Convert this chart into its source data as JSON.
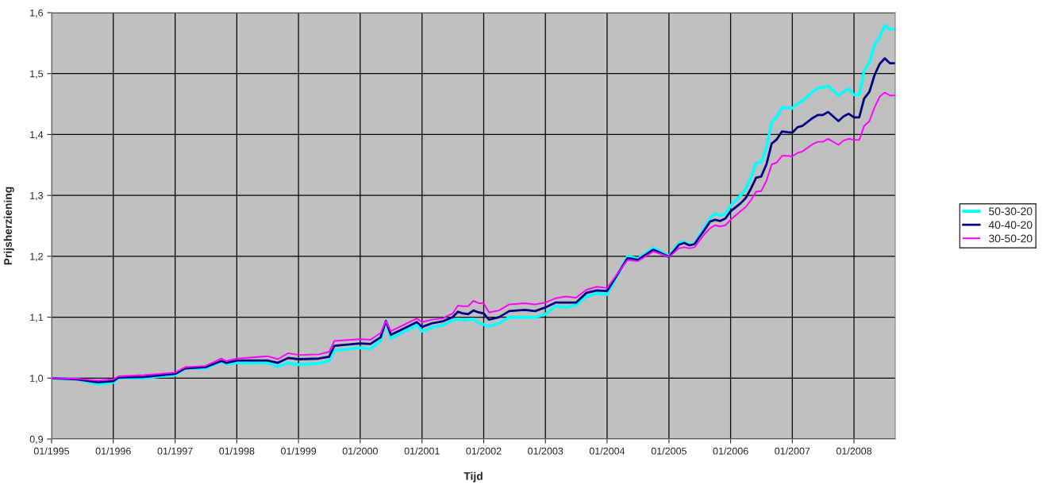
{
  "chart_data": {
    "type": "line",
    "xlabel": "Tijd",
    "ylabel": "Prijsherziening",
    "x": [
      "1995-01",
      "1995-06",
      "1995-10",
      "1996-01",
      "1996-02",
      "1996-07",
      "1997-01",
      "1997-03",
      "1997-07",
      "1997-10",
      "1997-11",
      "1998-01",
      "1998-07",
      "1998-09",
      "1998-11",
      "1999-01",
      "1999-05",
      "1999-07",
      "1999-08",
      "2000-01",
      "2000-03",
      "2000-05",
      "2000-06",
      "2000-07",
      "2000-12",
      "2001-01",
      "2001-03",
      "2001-05",
      "2001-07",
      "2001-08",
      "2001-09",
      "2001-10",
      "2001-11",
      "2001-12",
      "2002-01",
      "2002-02",
      "2002-04",
      "2002-06",
      "2002-09",
      "2002-11",
      "2003-01",
      "2003-03",
      "2003-05",
      "2003-07",
      "2003-09",
      "2003-11",
      "2004-01",
      "2004-05",
      "2004-07",
      "2004-10",
      "2005-01",
      "2005-03",
      "2005-04",
      "2005-05",
      "2005-06",
      "2005-08",
      "2005-09",
      "2005-10",
      "2005-11",
      "2005-12",
      "2006-01",
      "2006-03",
      "2006-04",
      "2006-05",
      "2006-06",
      "2006-07",
      "2006-08",
      "2006-09",
      "2006-10",
      "2006-11",
      "2006-12",
      "2007-01",
      "2007-02",
      "2007-03",
      "2007-05",
      "2007-06",
      "2007-07",
      "2007-08",
      "2007-10",
      "2007-11",
      "2007-12",
      "2008-01",
      "2008-02",
      "2008-03",
      "2008-04",
      "2008-05",
      "2008-06",
      "2008-07",
      "2008-08",
      "2008-09"
    ],
    "series": [
      {
        "name": "50-30-20",
        "color": "#00ffff",
        "values": [
          1.0,
          0.998,
          0.99,
          0.993,
          1.0,
          1.0,
          1.005,
          1.016,
          1.016,
          1.028,
          1.023,
          1.025,
          1.025,
          1.019,
          1.025,
          1.022,
          1.024,
          1.028,
          1.045,
          1.05,
          1.048,
          1.061,
          1.094,
          1.065,
          1.087,
          1.077,
          1.083,
          1.087,
          1.095,
          1.097,
          1.095,
          1.096,
          1.097,
          1.091,
          1.088,
          1.085,
          1.09,
          1.1,
          1.1,
          1.1,
          1.105,
          1.118,
          1.116,
          1.12,
          1.134,
          1.139,
          1.137,
          1.2,
          1.196,
          1.214,
          1.2,
          1.222,
          1.224,
          1.219,
          1.221,
          1.248,
          1.263,
          1.27,
          1.267,
          1.27,
          1.283,
          1.3,
          1.311,
          1.329,
          1.353,
          1.355,
          1.379,
          1.42,
          1.429,
          1.444,
          1.444,
          1.443,
          1.451,
          1.455,
          1.47,
          1.476,
          1.477,
          1.48,
          1.464,
          1.47,
          1.475,
          1.465,
          1.465,
          1.505,
          1.518,
          1.547,
          1.56,
          1.579,
          1.573,
          1.573
        ]
      },
      {
        "name": "40-40-20",
        "color": "#000080",
        "values": [
          1.0,
          0.998,
          0.993,
          0.995,
          1.001,
          1.002,
          1.007,
          1.016,
          1.018,
          1.028,
          1.025,
          1.029,
          1.029,
          1.025,
          1.033,
          1.031,
          1.032,
          1.035,
          1.053,
          1.057,
          1.056,
          1.067,
          1.094,
          1.071,
          1.092,
          1.084,
          1.09,
          1.093,
          1.1,
          1.109,
          1.106,
          1.105,
          1.111,
          1.108,
          1.106,
          1.096,
          1.1,
          1.11,
          1.112,
          1.11,
          1.116,
          1.124,
          1.124,
          1.124,
          1.14,
          1.144,
          1.143,
          1.197,
          1.194,
          1.211,
          1.199,
          1.219,
          1.222,
          1.218,
          1.22,
          1.244,
          1.257,
          1.26,
          1.258,
          1.262,
          1.274,
          1.287,
          1.296,
          1.311,
          1.329,
          1.331,
          1.351,
          1.385,
          1.392,
          1.405,
          1.404,
          1.403,
          1.412,
          1.414,
          1.427,
          1.432,
          1.432,
          1.437,
          1.422,
          1.43,
          1.434,
          1.428,
          1.428,
          1.459,
          1.47,
          1.497,
          1.516,
          1.525,
          1.517,
          1.517
        ]
      },
      {
        "name": "30-50-20",
        "color": "#ff00ff",
        "values": [
          1.0,
          0.999,
          0.996,
          0.998,
          1.003,
          1.005,
          1.009,
          1.018,
          1.02,
          1.032,
          1.028,
          1.032,
          1.036,
          1.031,
          1.041,
          1.038,
          1.039,
          1.043,
          1.061,
          1.064,
          1.063,
          1.074,
          1.094,
          1.077,
          1.098,
          1.092,
          1.096,
          1.098,
          1.106,
          1.119,
          1.118,
          1.118,
          1.127,
          1.123,
          1.123,
          1.108,
          1.111,
          1.121,
          1.123,
          1.121,
          1.124,
          1.131,
          1.134,
          1.132,
          1.145,
          1.15,
          1.148,
          1.194,
          1.192,
          1.208,
          1.199,
          1.213,
          1.215,
          1.213,
          1.215,
          1.237,
          1.246,
          1.251,
          1.249,
          1.251,
          1.26,
          1.274,
          1.281,
          1.292,
          1.306,
          1.307,
          1.324,
          1.351,
          1.354,
          1.365,
          1.365,
          1.364,
          1.37,
          1.372,
          1.384,
          1.388,
          1.388,
          1.393,
          1.383,
          1.39,
          1.393,
          1.391,
          1.391,
          1.414,
          1.422,
          1.444,
          1.462,
          1.469,
          1.464,
          1.464
        ]
      }
    ],
    "xlim": [
      "1995-01",
      "2008-09"
    ],
    "xticks": [
      {
        "value": "1995-01",
        "label": "01/1995"
      },
      {
        "value": "1996-01",
        "label": "01/1996"
      },
      {
        "value": "1997-01",
        "label": "01/1997"
      },
      {
        "value": "1998-01",
        "label": "01/1998"
      },
      {
        "value": "1999-01",
        "label": "01/1999"
      },
      {
        "value": "2000-01",
        "label": "01/2000"
      },
      {
        "value": "2001-01",
        "label": "01/2001"
      },
      {
        "value": "2002-01",
        "label": "01/2002"
      },
      {
        "value": "2003-01",
        "label": "01/2003"
      },
      {
        "value": "2004-01",
        "label": "01/2004"
      },
      {
        "value": "2005-01",
        "label": "01/2005"
      },
      {
        "value": "2006-01",
        "label": "01/2006"
      },
      {
        "value": "2007-01",
        "label": "01/2007"
      },
      {
        "value": "2008-01",
        "label": "01/2008"
      }
    ],
    "ylim": [
      0.9,
      1.6
    ],
    "yticks": [
      {
        "value": 0.9,
        "label": "0,9"
      },
      {
        "value": 1.0,
        "label": "1,0"
      },
      {
        "value": 1.1,
        "label": "1,1"
      },
      {
        "value": 1.2,
        "label": "1,2"
      },
      {
        "value": 1.3,
        "label": "1,3"
      },
      {
        "value": 1.4,
        "label": "1,4"
      },
      {
        "value": 1.5,
        "label": "1,5"
      },
      {
        "value": 1.6,
        "label": "1,6"
      }
    ],
    "grid": true,
    "legend": "right",
    "marker": "none",
    "line_style": "solid"
  }
}
